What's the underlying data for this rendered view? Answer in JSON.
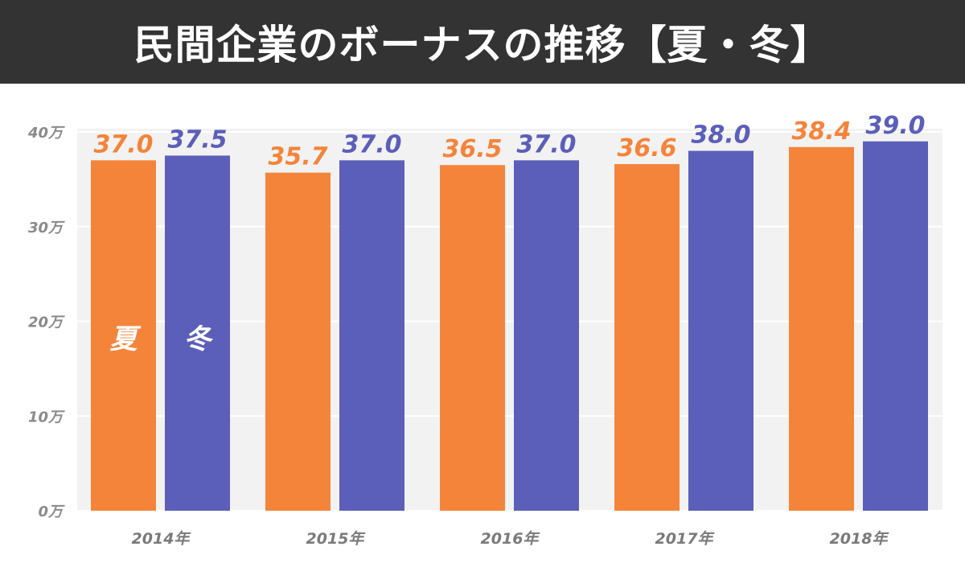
{
  "title": "民間企業のボーナスの推移【夏・冬】",
  "chart_data": {
    "type": "bar",
    "categories": [
      "2014年",
      "2015年",
      "2016年",
      "2017年",
      "2018年"
    ],
    "series": [
      {
        "name": "夏",
        "color": "#f4843a",
        "values": [
          37.0,
          35.7,
          36.5,
          36.6,
          38.4
        ]
      },
      {
        "name": "冬",
        "color": "#5b5fb9",
        "values": [
          37.5,
          37.0,
          37.0,
          38.0,
          39.0
        ]
      }
    ],
    "y_ticks": [
      0,
      10,
      20,
      30,
      40
    ],
    "y_tick_labels": [
      "0万",
      "10万",
      "20万",
      "30万",
      "40万"
    ],
    "ylim": [
      0,
      40
    ],
    "data_label_format": "one-decimal",
    "plot_background": "#f2f2f2",
    "grid": true,
    "legend": "inside-first-bars"
  }
}
